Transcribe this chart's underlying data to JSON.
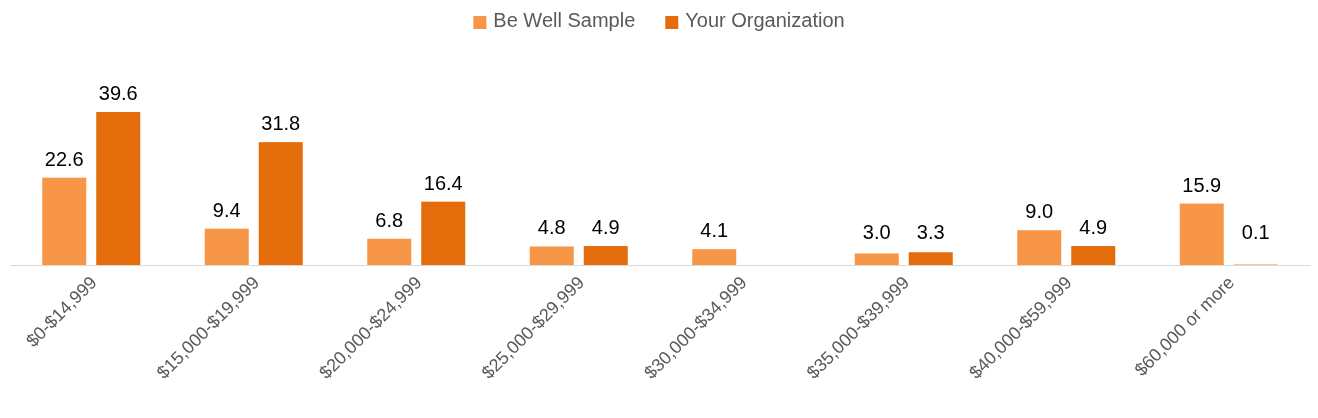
{
  "chart_data": {
    "type": "bar",
    "categories": [
      "$0-$14,999",
      "$15,000-$19,999",
      "$20,000-$24,999",
      "$25,000-$29,999",
      "$30,000-$34,999",
      "$35,000-$39,999",
      "$40,000-$59,999",
      "$60,000 or more"
    ],
    "series": [
      {
        "name": "Be Well Sample",
        "color": "#f79646",
        "values": [
          22.6,
          9.4,
          6.8,
          4.8,
          4.1,
          3.0,
          9.0,
          15.9
        ],
        "value_labels": [
          "22.6",
          "9.4",
          "6.8",
          "4.8",
          "4.1",
          "3.0",
          "9.0",
          "15.9"
        ]
      },
      {
        "name": "Your Organization",
        "color": "#e46c0a",
        "values": [
          39.6,
          31.8,
          16.4,
          4.9,
          null,
          3.3,
          4.9,
          0.1
        ],
        "value_labels": [
          "39.6",
          "31.8",
          "16.4",
          "4.9",
          null,
          "3.3",
          "4.9",
          "0.1"
        ]
      }
    ],
    "legend": "top",
    "grid": false
  }
}
